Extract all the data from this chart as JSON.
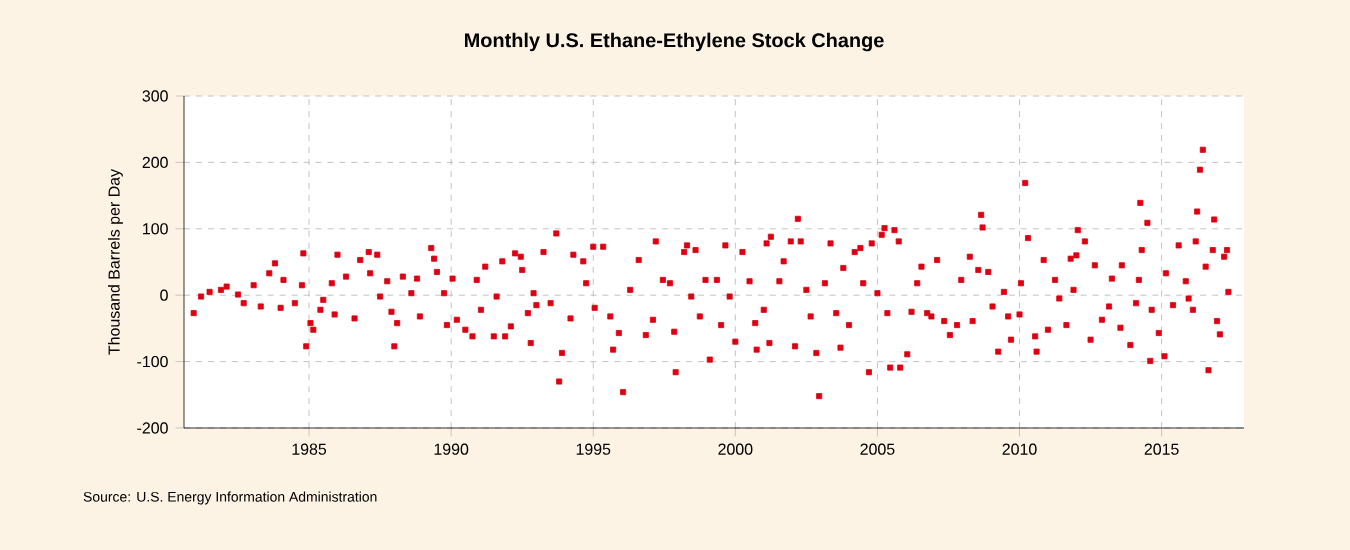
{
  "chart_data": {
    "type": "scatter",
    "title": "Monthly U.S. Ethane-Ethylene Stock Change",
    "ylabel": "Thousand Barrels per Day",
    "annotations": [
      "Source: U.S. Energy Information Administration"
    ],
    "xlim": [
      1980.6,
      2017.9
    ],
    "xticks": [
      1985,
      1990,
      1995,
      2000,
      2005,
      2010,
      2015
    ],
    "ylim": [
      -200,
      300
    ],
    "yticks": [
      -200,
      -100,
      0,
      100,
      200,
      300
    ],
    "grid": true,
    "marker": "square",
    "series": [
      {
        "color": "#dd0011",
        "x": [
          1980.94,
          1981.2,
          1981.5,
          1981.9,
          1982.1,
          1982.5,
          1982.7,
          1983.05,
          1983.3,
          1983.6,
          1983.8,
          1984.0,
          1984.1,
          1984.5,
          1984.75,
          1984.8,
          1984.9,
          1985.05,
          1985.15,
          1985.4,
          1985.5,
          1985.8,
          1985.9,
          1986.0,
          1986.3,
          1986.6,
          1986.8,
          1987.1,
          1987.15,
          1987.4,
          1987.5,
          1987.75,
          1987.9,
          1988.0,
          1988.1,
          1988.3,
          1988.6,
          1988.8,
          1988.9,
          1989.3,
          1989.4,
          1989.5,
          1989.75,
          1989.85,
          1990.05,
          1990.2,
          1990.5,
          1990.75,
          1990.9,
          1991.05,
          1991.2,
          1991.5,
          1991.6,
          1991.8,
          1991.9,
          1992.1,
          1992.25,
          1992.45,
          1992.5,
          1992.7,
          1992.8,
          1992.9,
          1993.0,
          1993.25,
          1993.5,
          1993.7,
          1993.8,
          1993.9,
          1994.2,
          1994.3,
          1994.65,
          1994.75,
          1995.0,
          1995.05,
          1995.35,
          1995.6,
          1995.7,
          1995.9,
          1996.05,
          1996.3,
          1996.6,
          1996.85,
          1997.1,
          1997.2,
          1997.45,
          1997.7,
          1997.85,
          1997.9,
          1998.2,
          1998.3,
          1998.45,
          1998.6,
          1998.75,
          1998.95,
          1999.1,
          1999.35,
          1999.5,
          1999.65,
          1999.8,
          2000.0,
          2000.25,
          2000.5,
          2000.7,
          2000.75,
          2001.0,
          2001.1,
          2001.2,
          2001.25,
          2001.55,
          2001.7,
          2001.95,
          2002.1,
          2002.2,
          2002.3,
          2002.5,
          2002.65,
          2002.85,
          2002.95,
          2003.15,
          2003.35,
          2003.55,
          2003.7,
          2003.8,
          2004.0,
          2004.2,
          2004.4,
          2004.5,
          2004.7,
          2004.8,
          2005.0,
          2005.15,
          2005.25,
          2005.35,
          2005.45,
          2005.6,
          2005.75,
          2005.8,
          2006.05,
          2006.2,
          2006.4,
          2006.55,
          2006.75,
          2006.9,
          2007.1,
          2007.35,
          2007.55,
          2007.8,
          2007.95,
          2008.25,
          2008.35,
          2008.55,
          2008.65,
          2008.7,
          2008.9,
          2009.05,
          2009.25,
          2009.45,
          2009.6,
          2009.7,
          2010.0,
          2010.05,
          2010.2,
          2010.3,
          2010.55,
          2010.6,
          2010.85,
          2011.0,
          2011.25,
          2011.4,
          2011.65,
          2011.8,
          2011.9,
          2012.0,
          2012.05,
          2012.3,
          2012.5,
          2012.65,
          2012.9,
          2013.15,
          2013.25,
          2013.55,
          2013.6,
          2013.9,
          2014.1,
          2014.2,
          2014.25,
          2014.3,
          2014.5,
          2014.6,
          2014.65,
          2014.9,
          2015.1,
          2015.15,
          2015.4,
          2015.6,
          2015.85,
          2015.95,
          2016.1,
          2016.2,
          2016.25,
          2016.35,
          2016.45,
          2016.55,
          2016.65,
          2016.8,
          2016.85,
          2016.95,
          2017.05,
          2017.2,
          2017.3,
          2017.35
        ],
        "values": [
          -27,
          -2,
          5,
          8,
          13,
          1,
          -12,
          15,
          -17,
          33,
          48,
          -19,
          23,
          -12,
          15,
          63,
          -77,
          -42,
          -52,
          -22,
          -7,
          18,
          -29,
          61,
          28,
          -35,
          53,
          65,
          33,
          61,
          -2,
          21,
          -25,
          -77,
          -42,
          28,
          3,
          25,
          -32,
          71,
          55,
          35,
          3,
          -45,
          25,
          -37,
          -52,
          -62,
          23,
          -22,
          43,
          -62,
          -2,
          51,
          -62,
          -47,
          63,
          58,
          38,
          -27,
          -72,
          3,
          -15,
          65,
          -12,
          93,
          -130,
          -87,
          -35,
          61,
          51,
          18,
          73,
          -19,
          73,
          -32,
          -82,
          -57,
          -146,
          8,
          53,
          -60,
          -37,
          81,
          23,
          18,
          -55,
          -116,
          65,
          75,
          -2,
          68,
          -32,
          23,
          -97,
          23,
          -45,
          75,
          -2,
          -70,
          65,
          21,
          -42,
          -82,
          -22,
          78,
          -72,
          88,
          21,
          51,
          81,
          -77,
          115,
          81,
          8,
          -32,
          -87,
          -152,
          18,
          78,
          -27,
          -79,
          41,
          -45,
          65,
          71,
          18,
          -116,
          78,
          3,
          91,
          101,
          -27,
          -109,
          98,
          81,
          -109,
          -89,
          -25,
          18,
          43,
          -27,
          -32,
          53,
          -39,
          -60,
          -45,
          23,
          58,
          -39,
          38,
          121,
          102,
          35,
          -17,
          -85,
          5,
          -32,
          -67,
          -29,
          18,
          169,
          86,
          -62,
          -85,
          53,
          -52,
          23,
          -5,
          -45,
          55,
          8,
          60,
          98,
          81,
          -67,
          45,
          -37,
          -17,
          25,
          -49,
          45,
          -75,
          -12,
          23,
          139,
          68,
          109,
          -99,
          -22,
          -57,
          -92,
          33,
          -15,
          75,
          21,
          -5,
          -22,
          81,
          126,
          189,
          219,
          43,
          -113,
          68,
          114,
          -39,
          -59,
          58,
          68,
          5
        ]
      }
    ]
  }
}
